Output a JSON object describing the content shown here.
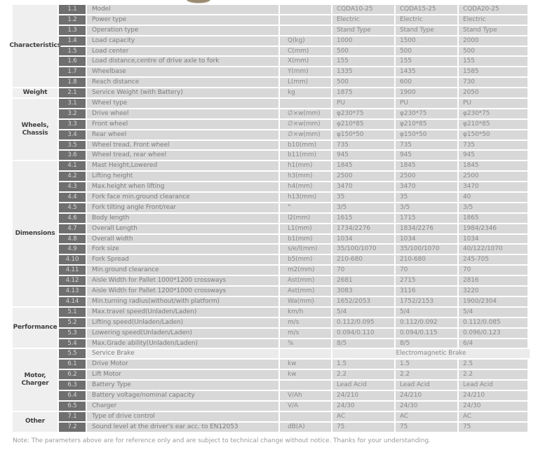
{
  "decor": {
    "photo_remnant_color": "#9a8b70"
  },
  "colors": {
    "index_cell_bg": "#6f6f6f",
    "cell_bg": "#d8d8d8",
    "category_bg": "#efefef",
    "highlight_row_bg": "#ebebeb",
    "text": "#7d7d7d"
  },
  "table": {
    "models": [
      "CQDA10-25",
      "CQDA15-25",
      "CQDA20-25"
    ],
    "groups": [
      {
        "label": [
          "Characteristics"
        ],
        "rows": [
          {
            "no": "1.1",
            "param": "Model",
            "unit": "",
            "values": [
              "CQDA10-25",
              "CQDA15-25",
              "CQDA20-25"
            ]
          },
          {
            "no": "1.2",
            "param": "Power type",
            "unit": "",
            "values": [
              "Electric",
              "Electric",
              "Electric"
            ]
          },
          {
            "no": "1.3",
            "param": "Operation type",
            "unit": "",
            "values": [
              "Stand Type",
              "Stand Type",
              "Stand Type"
            ]
          },
          {
            "no": "1.4",
            "param": "Load capacity",
            "unit": "Q(kg)",
            "values": [
              "1000",
              "1500",
              "2000"
            ]
          },
          {
            "no": "1.5",
            "param": "Load center",
            "unit": "C(mm)",
            "values": [
              "500",
              "500",
              "500"
            ]
          },
          {
            "no": "1.6",
            "param": "Load distance,centre of drive axle to fork",
            "unit": "X(mm)",
            "values": [
              "155",
              "155",
              "155"
            ]
          },
          {
            "no": "1.7",
            "param": "Wheelbase",
            "unit": "Y(mm)",
            "values": [
              "1335",
              "1435",
              "1585"
            ]
          },
          {
            "no": "1.8",
            "param": "Reach distance",
            "unit": "L(mm)",
            "values": [
              "500",
              "600",
              "730"
            ]
          }
        ]
      },
      {
        "label": [
          "Weight"
        ],
        "rows": [
          {
            "no": "2.1",
            "param": "Service Weight (with Battery)",
            "unit": "kg",
            "values": [
              "1875",
              "1900",
              "2050"
            ]
          }
        ]
      },
      {
        "label": [
          "Wheels,",
          "Chassis"
        ],
        "rows": [
          {
            "no": "3.1",
            "param": "Wheel type",
            "unit": "",
            "values": [
              "PU",
              "PU",
              "PU"
            ]
          },
          {
            "no": "3.2",
            "param": "Drive wheel",
            "unit": "∅×w(mm)",
            "values": [
              "φ230*75",
              "φ230*75",
              "φ230*75"
            ]
          },
          {
            "no": "3.3",
            "param": "Front wheel",
            "unit": "∅×w(mm)",
            "values": [
              "φ210*85",
              "φ210*85",
              "φ210*85"
            ]
          },
          {
            "no": "3.4",
            "param": "Rear wheel",
            "unit": "∅×w(mm)",
            "values": [
              "φ150*50",
              "φ150*50",
              "φ150*50"
            ]
          },
          {
            "no": "3.5",
            "param": "Wheel tread, Front wheel",
            "unit": "b10(mm)",
            "values": [
              "735",
              "735",
              "735"
            ]
          },
          {
            "no": "3.6",
            "param": "Wheel tread, rear wheel",
            "unit": "b11(mm)",
            "values": [
              "945",
              "945",
              "945"
            ]
          }
        ]
      },
      {
        "label": [
          "Dimensions"
        ],
        "rows": [
          {
            "no": "4.1",
            "param": "Mast Height,Lowered",
            "unit": "h1(mm)",
            "values": [
              "1845",
              "1845",
              "1845"
            ]
          },
          {
            "no": "4.2",
            "param": "Lifting height",
            "unit": "h3(mm)",
            "values": [
              "2500",
              "2500",
              "2500"
            ]
          },
          {
            "no": "4.3",
            "param": "Max.height when lifting",
            "unit": "h4(mm)",
            "values": [
              "3470",
              "3470",
              "3470"
            ]
          },
          {
            "no": "4.4",
            "param": "Fork face min.ground clearance",
            "unit": "h13(mm)",
            "values": [
              "35",
              "35",
              "40"
            ]
          },
          {
            "no": "4.5",
            "param": "Fork tilting angle Front/rear",
            "unit": "°",
            "values": [
              "3/5",
              "3/5",
              "3/5"
            ]
          },
          {
            "no": "4.6",
            "param": "Body length",
            "unit": "l2(mm)",
            "values": [
              "1615",
              "1715",
              "1865"
            ]
          },
          {
            "no": "4.7",
            "param": "Overall Length",
            "unit": "L1(mm)",
            "values": [
              "1734/2276",
              "1834/2276",
              "1984/2346"
            ]
          },
          {
            "no": "4.8",
            "param": "Overall width",
            "unit": "b1(mm)",
            "values": [
              "1034",
              "1034",
              "1034"
            ]
          },
          {
            "no": "4.9",
            "param": "Fork size",
            "unit": "s/e/l(mm)",
            "values": [
              "35/100/1070",
              "35/100/1070",
              "40/122/1070"
            ]
          },
          {
            "no": "4.10",
            "param": "Fork Spread",
            "unit": "b5(mm)",
            "values": [
              "210-680",
              "210-680",
              "245-705"
            ]
          },
          {
            "no": "4.11",
            "param": "Min.ground clearance",
            "unit": "m2(mm)",
            "values": [
              "70",
              "70",
              "70"
            ]
          },
          {
            "no": "4.12",
            "param": "Aisle Width for Pallet 1000*1200 crossways",
            "unit": "Ast(mm)",
            "values": [
              "2681",
              "2715",
              "2816"
            ]
          },
          {
            "no": "4.13",
            "param": "Aisle Width for Pallet 1200*1000 crossways",
            "unit": "Ast(mm)",
            "values": [
              "3083",
              "3116",
              "3220"
            ]
          },
          {
            "no": "4.14",
            "param": "Min.turning radius(without/with platform)",
            "unit": "Wa(mm)",
            "values": [
              "1652/2053",
              "1752/2153",
              "1900/2304"
            ]
          }
        ]
      },
      {
        "label": [
          "Performance"
        ],
        "rows": [
          {
            "no": "5.1",
            "param": "Max.travel speed(Unladen/Laden)",
            "unit": "km/h",
            "values": [
              "5/4",
              "5/4",
              "5/4"
            ]
          },
          {
            "no": "5.2",
            "param": "Lifting speed(Unladen/Laden)",
            "unit": "m/s",
            "values": [
              "0.112/0.095",
              "0.112/0.092",
              "0.112/0.085"
            ]
          },
          {
            "no": "5.3",
            "param": "Lowering speed(Unladen/Laden)",
            "unit": "m/s",
            "values": [
              "0.094/0.110",
              "0.094/0.115",
              "0.096/0.123"
            ]
          },
          {
            "no": "5.4",
            "param": "Max.Grade ability(Unladen/Laden)",
            "unit": "%",
            "values": [
              "8/5",
              "8/5",
              "6/4"
            ]
          }
        ]
      },
      {
        "label": [
          "Motor,",
          "Charger"
        ],
        "rows": [
          {
            "no": "5.5",
            "param": "Service Brake",
            "unit": "",
            "merged": "Electromagnetic Brake",
            "light": true
          },
          {
            "no": "6.1",
            "param": "Drive Motor",
            "unit": "kw",
            "values": [
              "1.5",
              "1.5",
              "2.5"
            ]
          },
          {
            "no": "6.2",
            "param": "Lift Motor",
            "unit": "kw",
            "values": [
              "2.2",
              "2.2",
              "2.2"
            ]
          },
          {
            "no": "6.3",
            "param": "Battery Type",
            "unit": "",
            "values": [
              "Lead Acid",
              "Lead Acid",
              "Lead Acid"
            ]
          },
          {
            "no": "6.4",
            "param": "Battery voltage/nominal capacity",
            "unit": "V/Ah",
            "values": [
              "24/210",
              "24/210",
              "24/210"
            ]
          },
          {
            "no": "6.5",
            "param": "Charger",
            "unit": "V/A",
            "values": [
              "24/30",
              "24/30",
              "24/30"
            ]
          }
        ]
      },
      {
        "label": [
          "Other"
        ],
        "rows": [
          {
            "no": "7.1",
            "param": "Type of drive control",
            "unit": "",
            "values": [
              "AC",
              "AC",
              "AC"
            ]
          },
          {
            "no": "7.2",
            "param": "Sound level at the driver's ear acc. to EN12053",
            "unit": "dB(A)",
            "values": [
              "75",
              "75",
              "75"
            ]
          }
        ]
      }
    ]
  },
  "footer": {
    "note": "Note: The parameters above are for reference only and are subject to technical change without notice. Thanks for your understanding."
  }
}
